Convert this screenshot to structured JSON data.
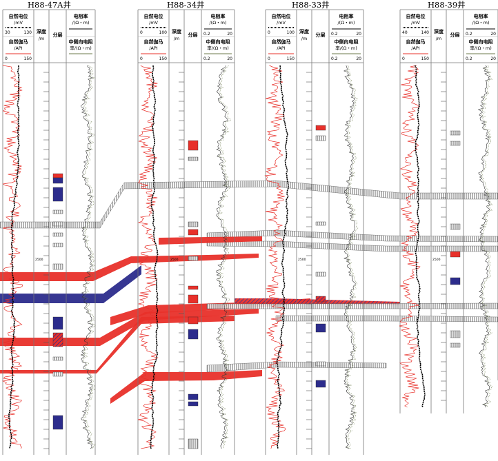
{
  "column_headers": {
    "sp": "自然电位",
    "sp_unit": "/mV",
    "gr": "自然伽马",
    "gr_unit": "/API",
    "depth": "深度",
    "depth_unit": "/m",
    "layer": "分层",
    "res": "电阻率",
    "res_unit": "/(Ω・m)",
    "lat1": "中侧向电阻",
    "lat2": "率/(Ω・m)"
  },
  "depth_marker": "2500",
  "colors": {
    "oil_layer": "#e8302a",
    "water_layer": "#2c2c8c",
    "gr_curve": "#e8302a",
    "sp_curve": "#000000",
    "res_curve": "#6b7a4a",
    "grid": "#808080"
  },
  "wells": [
    {
      "name": "H88-47A井",
      "sp_min": "30",
      "sp_max": "130",
      "gr_min": "0",
      "gr_max": "150",
      "res_min": "",
      "res_max": ""
    },
    {
      "name": "H88-34井",
      "sp_min": "0",
      "sp_max": "100",
      "gr_min": "0",
      "gr_max": "150",
      "res_min": "0.2",
      "res_max": "20"
    },
    {
      "name": "H88-33井",
      "sp_min": "0",
      "sp_max": "100",
      "gr_min": "0",
      "gr_max": "150",
      "res_min": "0.2",
      "res_max": "20"
    },
    {
      "name": "H88-39井",
      "sp_min": "40",
      "sp_max": "140",
      "gr_min": "0",
      "gr_max": "150",
      "res_min": "0.2",
      "res_max": "20"
    }
  ]
}
